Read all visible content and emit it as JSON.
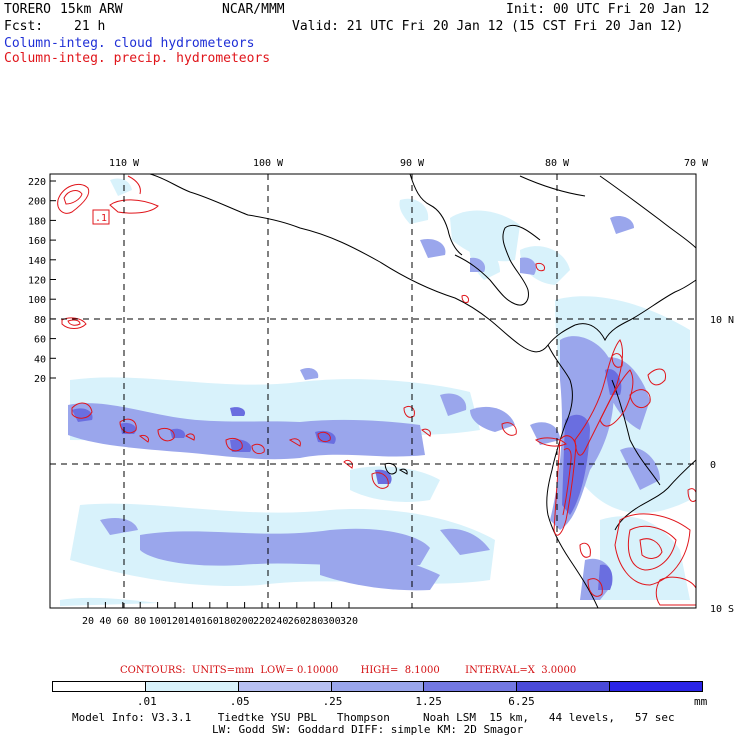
{
  "header": {
    "model": "TORERO",
    "resolution": "15km ARW",
    "center": "NCAR/MMM",
    "init": "Init: 00 UTC Fri 20 Jan 12",
    "fcst_label": "Fcst:",
    "fcst_value": "21 h",
    "valid": "Valid: 21 UTC Fri 20 Jan 12 (15 CST Fri 20 Jan 12)"
  },
  "fields": {
    "cloud": "Column-integ. cloud hydrometeors",
    "precip": "Column-integ. precip. hydrometeors"
  },
  "map": {
    "lon_labels": [
      "110 W",
      "100 W",
      "90 W",
      "80 W",
      "70 W"
    ],
    "lat_labels": [
      "10 N",
      "0",
      "10 S"
    ],
    "y_ticks": [
      "220",
      "200",
      "180",
      "160",
      "140",
      "120",
      "100",
      "80",
      "60",
      "40",
      "20"
    ],
    "x_ticks": [
      "20",
      "40",
      "60",
      "80",
      "100",
      "120",
      "140",
      "160",
      "180",
      "200",
      "220",
      "240",
      "260",
      "280",
      "300",
      "320"
    ],
    "box_label": ".1",
    "colors": {
      "coast": "#000000",
      "grid": "#000000",
      "cloud_shade_1": "#d8f2fb",
      "cloud_shade_2": "#9aa6ec",
      "cloud_shade_3": "#6a6ee0",
      "precip_contour": "#e0151b"
    }
  },
  "contours_info": {
    "text": "CONTOURS:  UNITS=mm  LOW= 0.10000       HIGH=  8.1000        INTERVAL=X  3.0000"
  },
  "colorbar": {
    "thresholds": [
      ".01",
      ".05",
      ".25",
      "1.25",
      "6.25"
    ],
    "unit": "mm",
    "colors": [
      "#ffffff",
      "#d8f2fb",
      "#b7c0f2",
      "#9aa6ec",
      "#7378e2",
      "#4a4ad8",
      "#2b25e6"
    ]
  },
  "footer": {
    "line1": "Model Info: V3.3.1    Tiedtke YSU PBL   Thompson     Noah LSM  15 km,   44 levels,   57 sec",
    "line2": "LW: Godd SW: Goddard DIFF: simple KM: 2D Smagor"
  }
}
